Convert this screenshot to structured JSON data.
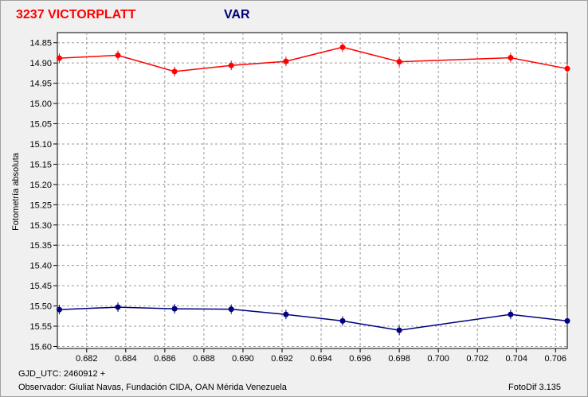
{
  "chart_data": {
    "type": "line",
    "title_left": "3237 VICTORPLATT",
    "title_right": "VAR",
    "ylabel": "Fotometría absoluta",
    "xlim": [
      0.6805,
      0.7066
    ],
    "ylim": [
      15.605,
      14.825
    ],
    "y_inverted": true,
    "grid": true,
    "x_ticks": [
      "0.682",
      "0.684",
      "0.686",
      "0.688",
      "0.690",
      "0.692",
      "0.694",
      "0.696",
      "0.698",
      "0.700",
      "0.702",
      "0.704",
      "0.706"
    ],
    "y_ticks": [
      "14.85",
      "14.90",
      "14.95",
      "15.00",
      "15.05",
      "15.10",
      "15.15",
      "15.20",
      "15.25",
      "15.30",
      "15.35",
      "15.40",
      "15.45",
      "15.50",
      "15.55",
      "15.60"
    ],
    "series": [
      {
        "name": "3237 VICTORPLATT",
        "color": "#ff0000",
        "x": [
          0.6806,
          0.6836,
          0.6865,
          0.6894,
          0.6922,
          0.6951,
          0.698,
          0.7037,
          0.7066
        ],
        "y": [
          14.888,
          14.881,
          14.921,
          14.906,
          14.896,
          14.861,
          14.897,
          14.887,
          14.914
        ]
      },
      {
        "name": "VAR",
        "color": "#000080",
        "x": [
          0.6806,
          0.6836,
          0.6865,
          0.6894,
          0.6922,
          0.6951,
          0.698,
          0.7037,
          0.7066
        ],
        "y": [
          15.509,
          15.503,
          15.507,
          15.508,
          15.521,
          15.537,
          15.56,
          15.521,
          15.537
        ]
      }
    ]
  },
  "footer": {
    "gjd": "GJD_UTC: 2460912 +",
    "observer": "Observador: Giuliat Navas, Fundación CIDA, OAN Mérida Venezuela",
    "software": "FotoDif 3.135"
  }
}
